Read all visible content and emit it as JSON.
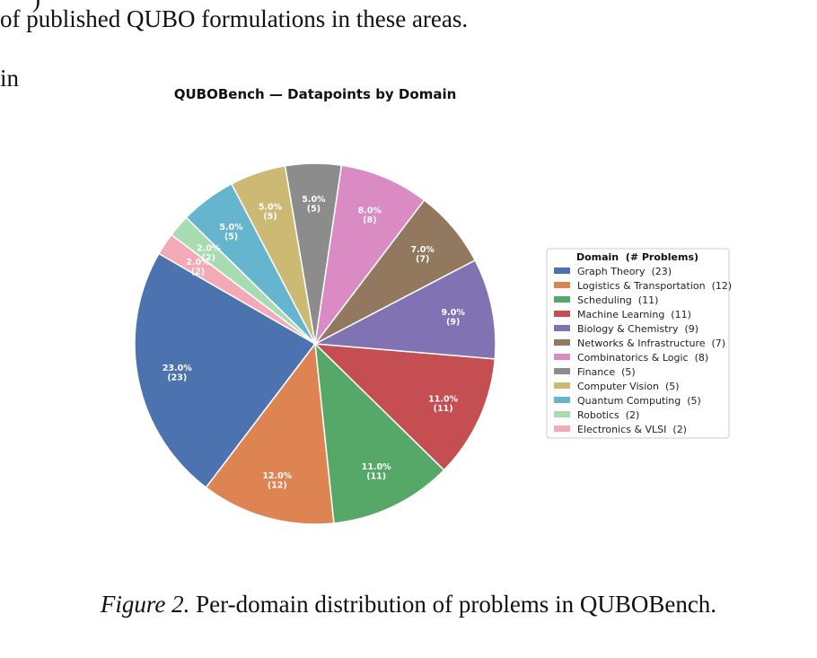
{
  "page": {
    "fragment_top": ")",
    "text_line": "of published QUBO formulations in these areas.",
    "side_fragment": "in",
    "caption_label": "Figure 2.",
    "caption_text": "Per-domain distribution of problems in QUBOBench."
  },
  "chart_data": {
    "type": "pie",
    "title": "QUBOBench — Datapoints by Domain",
    "legend_title": "Domain  (# Problems)",
    "legend_position": "right",
    "start_angle_deg": 150,
    "direction": "counterclockwise",
    "slices": [
      {
        "label": "Graph Theory",
        "value": 23,
        "pct_label": "23.0%",
        "count_label": "(23)",
        "legend_label": "Graph Theory  (23)",
        "color": "#4c72b0"
      },
      {
        "label": "Logistics & Transportation",
        "value": 12,
        "pct_label": "12.0%",
        "count_label": "(12)",
        "legend_label": "Logistics & Transportation  (12)",
        "color": "#dd8452"
      },
      {
        "label": "Scheduling",
        "value": 11,
        "pct_label": "11.0%",
        "count_label": "(11)",
        "legend_label": "Scheduling  (11)",
        "color": "#55a868"
      },
      {
        "label": "Machine Learning",
        "value": 11,
        "pct_label": "11.0%",
        "count_label": "(11)",
        "legend_label": "Machine Learning  (11)",
        "color": "#c44e52"
      },
      {
        "label": "Biology & Chemistry",
        "value": 9,
        "pct_label": "9.0%",
        "count_label": "(9)",
        "legend_label": "Biology & Chemistry  (9)",
        "color": "#8172b3"
      },
      {
        "label": "Networks & Infrastructure",
        "value": 7,
        "pct_label": "7.0%",
        "count_label": "(7)",
        "legend_label": "Networks & Infrastructure  (7)",
        "color": "#937860"
      },
      {
        "label": "Combinatorics & Logic",
        "value": 8,
        "pct_label": "8.0%",
        "count_label": "(8)",
        "legend_label": "Combinatorics & Logic  (8)",
        "color": "#da8bc3"
      },
      {
        "label": "Finance",
        "value": 5,
        "pct_label": "5.0%",
        "count_label": "(5)",
        "legend_label": "Finance  (5)",
        "color": "#8c8c8c"
      },
      {
        "label": "Computer Vision",
        "value": 5,
        "pct_label": "5.0%",
        "count_label": "(5)",
        "legend_label": "Computer Vision  (5)",
        "color": "#ccb974"
      },
      {
        "label": "Quantum Computing",
        "value": 5,
        "pct_label": "5.0%",
        "count_label": "(5)",
        "legend_label": "Quantum Computing  (5)",
        "color": "#64b5cd"
      },
      {
        "label": "Robotics",
        "value": 2,
        "pct_label": "2.0%",
        "count_label": "(2)",
        "legend_label": "Robotics  (2)",
        "color": "#a8dcb0"
      },
      {
        "label": "Electronics & VLSI",
        "value": 2,
        "pct_label": "2.0%",
        "count_label": "(2)",
        "legend_label": "Electronics & VLSI  (2)",
        "color": "#f3a9b6"
      }
    ]
  }
}
